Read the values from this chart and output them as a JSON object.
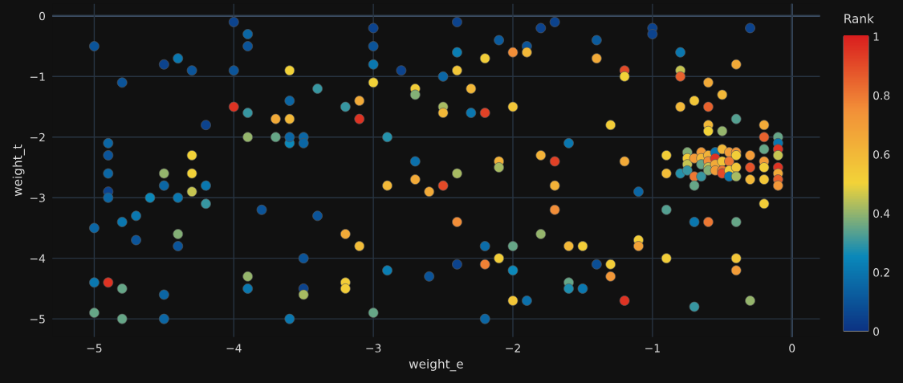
{
  "chart_data": {
    "type": "scatter",
    "xlabel": "weight_e",
    "ylabel": "weight_t",
    "clabel": "Rank",
    "xlim": [
      -5.3,
      0.2
    ],
    "ylim": [
      -5.3,
      0.2
    ],
    "xticks": [
      {
        "value": -5,
        "label": "−5"
      },
      {
        "value": -4,
        "label": "−4"
      },
      {
        "value": -3,
        "label": "−3"
      },
      {
        "value": -2,
        "label": "−2"
      },
      {
        "value": -1,
        "label": "−1"
      },
      0
    ],
    "yticks": [
      0,
      {
        "value": -1,
        "label": "−1"
      },
      {
        "value": -2,
        "label": "−2"
      },
      {
        "value": -3,
        "label": "−3"
      },
      {
        "value": -4,
        "label": "−4"
      },
      {
        "value": -5,
        "label": "−5"
      }
    ],
    "clim": [
      0,
      1
    ],
    "cticks": [
      0,
      0.2,
      0.4,
      0.6,
      0.8,
      1
    ],
    "grid": true,
    "marker": "circle",
    "series": [
      {
        "x": [
          -5,
          -5,
          -5,
          -5,
          -4.9,
          -4.9,
          -4.9,
          -4.9,
          -4.9,
          -4.9,
          -4.8,
          -4.8,
          -4.8,
          -4.8,
          -4.7,
          -4.7,
          -4.6,
          -4.5,
          -4.5,
          -4.5,
          -4.5,
          -4.5,
          -4.4,
          -4.4,
          -4.4,
          -4.4,
          -4.3,
          -4.3,
          -4.3,
          -4.3,
          -4.2,
          -4.2,
          -4.2,
          -3.8,
          -4,
          -4,
          -4,
          -3.9,
          -3.9,
          -3.9,
          -3.9,
          -3.9,
          -3.9,
          -3.7,
          -3.7,
          -3.6,
          -3.6,
          -3.6,
          -3.6,
          -3.6,
          -3.6,
          -3.5,
          -3.5,
          -3.5,
          -3.5,
          -3.5,
          -3.4,
          -3.4,
          -3.2,
          -3.2,
          -3.2,
          -3.2,
          -3.1,
          -3.1,
          -3.1,
          -3,
          -3,
          -3,
          -3,
          -3,
          -2.9,
          -2.9,
          -2.9,
          -2.8,
          -2.7,
          -2.7,
          -2.7,
          -2.7,
          -2.6,
          -2.6,
          -2.5,
          -2.5,
          -2.5,
          -2.5,
          -2.4,
          -2.4,
          -2.4,
          -2.4,
          -2.4,
          -2.4,
          -2.3,
          -2.3,
          -2.2,
          -2.2,
          -2.2,
          -2.2,
          -2.2,
          -2.1,
          -2.1,
          -2.1,
          -2.1,
          -2,
          -2,
          -2,
          -2,
          -2,
          -1.9,
          -1.9,
          -1.9,
          -1.8,
          -1.8,
          -1.8,
          -1.7,
          -1.4,
          -1.4,
          -1.2,
          -1.2,
          -1,
          -1,
          -0.8,
          -0.8,
          -0.8,
          -0.7,
          -0.8,
          -1.3,
          -1.6,
          -1.7,
          -1.2,
          -1.7,
          -1.1,
          -0.9,
          -0.9,
          -0.8,
          -1.7,
          -0.9,
          -0.7,
          -1.6,
          -1.5,
          -1.1,
          -1.1,
          -0.9,
          -1.4,
          -1.3,
          -1.3,
          -1.6,
          -1.6,
          -1.5,
          -1.2,
          -0.7,
          -0.6,
          -0.5,
          -0.4,
          -0.6,
          -0.6,
          -0.5,
          -0.6,
          -0.2,
          -0.2,
          -0.2,
          -0.2,
          -0.2,
          -0.2,
          -0.2,
          -0.1,
          -0.1,
          -0.1,
          -0.1,
          -0.1,
          -0.1,
          -0.1,
          -0.1,
          -0.3,
          -0.3,
          -0.3,
          -0.75,
          -0.75,
          -0.75,
          -0.75,
          -0.7,
          -0.7,
          -0.7,
          -0.65,
          -0.65,
          -0.65,
          -0.65,
          -0.6,
          -0.6,
          -0.6,
          -0.6,
          -0.55,
          -0.55,
          -0.55,
          -0.55,
          -0.5,
          -0.5,
          -0.5,
          -0.5,
          -0.45,
          -0.45,
          -0.45,
          -0.45,
          -0.4,
          -0.4,
          -0.4,
          -0.4,
          -0.6,
          -0.4,
          -0.4,
          -0.3,
          -0.4,
          -0.4,
          -0.3
        ],
        "values": [
          -0.5,
          -3.5,
          -4.4,
          -4.9,
          -2.1,
          -2.3,
          -2.6,
          -2.9,
          -3,
          -4.4,
          -1.1,
          -3.4,
          -4.5,
          -5,
          -3.3,
          -3.7,
          -3,
          -0.8,
          -2.6,
          -2.8,
          -4.6,
          -5,
          -0.7,
          -3,
          -3.6,
          -3.8,
          -0.9,
          -2.3,
          -2.6,
          -2.9,
          -1.8,
          -2.8,
          -3.1,
          -3.2,
          -0.1,
          -0.9,
          -1.5,
          -0.3,
          -0.5,
          -1.6,
          -2,
          -4.3,
          -4.5,
          -1.7,
          -2,
          -0.9,
          -1.4,
          -1.7,
          -2.1,
          -5,
          -2,
          -2,
          -2.1,
          -4,
          -4.5,
          -4.6,
          -1.2,
          -3.3,
          -1.5,
          -3.6,
          -4.4,
          -4.5,
          -1.4,
          -1.7,
          -3.8,
          -0.2,
          -0.5,
          -0.8,
          -1.1,
          -4.9,
          -2,
          -2.8,
          -4.2,
          -0.9,
          -1.2,
          -1.3,
          -2.4,
          -2.7,
          -2.9,
          -4.3,
          -1,
          -1.5,
          -1.6,
          -2.8,
          -0.1,
          -0.6,
          -0.9,
          -2.6,
          -3.4,
          -4.1,
          -1.2,
          -1.6,
          -0.7,
          -1.6,
          -3.8,
          -4.1,
          -5,
          -0.4,
          -2.4,
          -2.5,
          -4,
          -0.6,
          -1.5,
          -3.8,
          -4.2,
          -4.7,
          -0.5,
          -0.6,
          -4.7,
          -0.2,
          -2.3,
          -3.6,
          -0.1,
          -0.4,
          -0.7,
          -0.9,
          -1,
          -0.2,
          -0.3,
          -0.6,
          -0.9,
          -1,
          -1.4,
          -1.5,
          -1.8,
          -2.1,
          -2.4,
          -2.4,
          -2.8,
          -2.9,
          -2.3,
          -2.6,
          -2.6,
          -3.2,
          -3.2,
          -3.4,
          -3.8,
          -3.8,
          -3.7,
          -3.8,
          -4,
          -4.1,
          -4.1,
          -4.3,
          -4.4,
          -4.5,
          -4.5,
          -4.7,
          -4.8,
          -1.5,
          -1.3,
          -1.7,
          -1.8,
          -1.9,
          -1.9,
          -1.1,
          -1.8,
          -2,
          -2.2,
          -2.4,
          -2.5,
          -2.7,
          -3.1,
          -2,
          -2.1,
          -2.2,
          -2.3,
          -2.5,
          -2.6,
          -2.7,
          -2.8,
          -2.3,
          -2.5,
          -2.7,
          -2.25,
          -2.35,
          -2.45,
          -2.55,
          -2.35,
          -2.65,
          -2.8,
          -2.25,
          -2.35,
          -2.45,
          -2.65,
          -2.3,
          -2.4,
          -2.5,
          -2.55,
          -2.25,
          -2.35,
          -2.45,
          -2.55,
          -2.2,
          -2.4,
          -2.55,
          -2.6,
          -2.25,
          -2.4,
          -2.55,
          -2.65,
          -2.25,
          -2.3,
          -2.5,
          -2.65,
          -3.4,
          -3.4,
          -0.8,
          -0.2,
          -4,
          -4.2,
          -4.7
        ],
        "cvalues": [
          0.1,
          0.15,
          0.2,
          0.35,
          0.15,
          0.1,
          0.15,
          0.05,
          0.15,
          0.95,
          0.1,
          0.2,
          0.35,
          0.35,
          0.2,
          0.1,
          0.25,
          0.05,
          0.4,
          0.15,
          0.15,
          0.15,
          0.2,
          0.2,
          0.38,
          0.1,
          0.1,
          0.5,
          0.5,
          0.45,
          0.05,
          0.2,
          0.3,
          0.1,
          0.05,
          0.1,
          0.95,
          0.15,
          0.1,
          0.3,
          0.4,
          0.4,
          0.2,
          0.65,
          0.35,
          0.5,
          0.15,
          0.6,
          0.25,
          0.2,
          0.15,
          0.15,
          0.15,
          0.1,
          0.05,
          0.42,
          0.3,
          0.1,
          0.3,
          0.65,
          0.52,
          0.52,
          0.65,
          0.95,
          0.58,
          0.05,
          0.1,
          0.2,
          0.5,
          0.35,
          0.28,
          0.6,
          0.22,
          0.05,
          0.52,
          0.38,
          0.18,
          0.65,
          0.65,
          0.1,
          0.15,
          0.42,
          0.6,
          0.9,
          0.05,
          0.22,
          0.55,
          0.42,
          0.75,
          0.05,
          0.6,
          0.2,
          0.52,
          0.92,
          0.17,
          0.78,
          0.15,
          0.12,
          0.62,
          0.42,
          0.52,
          0.75,
          0.55,
          0.35,
          0.25,
          0.55,
          0.1,
          0.6,
          0.18,
          0.05,
          0.62,
          0.4,
          0.05,
          0.12,
          0.65,
          0.9,
          0.5,
          0.05,
          0.05,
          0.2,
          0.45,
          0.85,
          0.55,
          0.6,
          0.52,
          0.2,
          0.92,
          0.65,
          0.62,
          0.15,
          0.52,
          0.58,
          0.28,
          0.75,
          0.33,
          0.2,
          0.6,
          0.52,
          0.52,
          0.68,
          0.52,
          0.08,
          0.52,
          0.72,
          0.35,
          0.27,
          0.2,
          0.95,
          0.3,
          0.85,
          0.6,
          0.33,
          0.6,
          0.5,
          0.4,
          0.65,
          0.65,
          0.85,
          0.35,
          0.7,
          0.52,
          0.55,
          0.52,
          0.35,
          0.2,
          0.95,
          0.45,
          0.95,
          0.65,
          0.85,
          0.72,
          0.7,
          0.88,
          0.6,
          0.38,
          0.52,
          0.45,
          0.3,
          0.7,
          0.8,
          0.35,
          0.7,
          0.6,
          0.35,
          0.3,
          0.62,
          0.75,
          0.45,
          0.38,
          0.2,
          0.95,
          0.65,
          0.7,
          0.6,
          0.55,
          0.8,
          0.9,
          0.7,
          0.8,
          0.52,
          0.2,
          0.72,
          0.52,
          0.55,
          0.42,
          0.8,
          0.35,
          0.65,
          0.05,
          0.55,
          0.7,
          0.4
        ]
      }
    ]
  }
}
